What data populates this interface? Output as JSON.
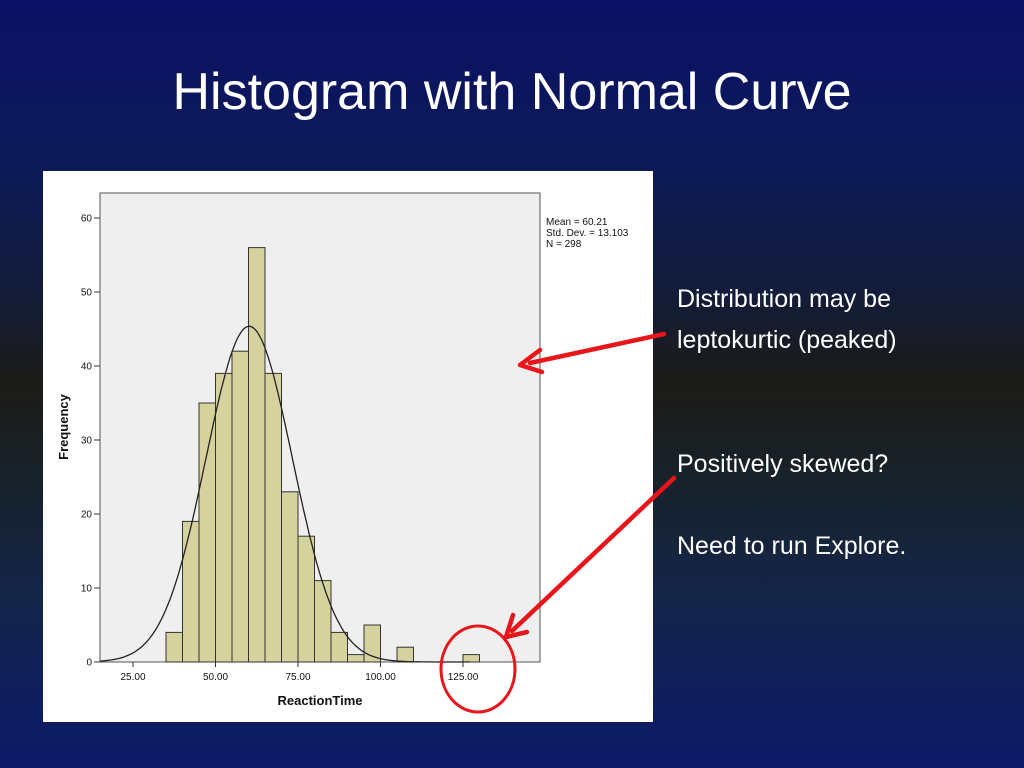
{
  "slide": {
    "title": "Histogram with Normal Curve",
    "notes": {
      "line1": "Distribution may be",
      "line2": "leptokurtic (peaked)",
      "line3": "Positively skewed?",
      "line4": "Need to run Explore."
    }
  },
  "chart_data": {
    "type": "bar",
    "subtype": "histogram-with-normal-curve",
    "xlabel": "ReactionTime",
    "ylabel": "Frequency",
    "xlim": [
      15,
      140
    ],
    "ylim": [
      0,
      60
    ],
    "x_ticks": [
      25,
      50,
      75,
      100,
      125
    ],
    "x_tick_labels": [
      "25.00",
      "50.00",
      "75.00",
      "100.00",
      "125.00"
    ],
    "y_ticks": [
      0,
      10,
      20,
      30,
      40,
      50,
      60
    ],
    "y_tick_labels": [
      "0",
      "10",
      "20",
      "30",
      "40",
      "50",
      "60"
    ],
    "bin_width": 5,
    "bins": [
      {
        "start": 35,
        "end": 40,
        "count": 4
      },
      {
        "start": 40,
        "end": 45,
        "count": 19
      },
      {
        "start": 45,
        "end": 50,
        "count": 35
      },
      {
        "start": 50,
        "end": 55,
        "count": 39
      },
      {
        "start": 55,
        "end": 60,
        "count": 42
      },
      {
        "start": 60,
        "end": 65,
        "count": 56
      },
      {
        "start": 65,
        "end": 70,
        "count": 39
      },
      {
        "start": 70,
        "end": 75,
        "count": 23
      },
      {
        "start": 75,
        "end": 80,
        "count": 17
      },
      {
        "start": 80,
        "end": 85,
        "count": 11
      },
      {
        "start": 85,
        "end": 90,
        "count": 4
      },
      {
        "start": 90,
        "end": 95,
        "count": 1
      },
      {
        "start": 95,
        "end": 100,
        "count": 5
      },
      {
        "start": 100,
        "end": 105,
        "count": 0
      },
      {
        "start": 105,
        "end": 110,
        "count": 2
      },
      {
        "start": 125,
        "end": 130,
        "count": 1
      }
    ],
    "stats": {
      "mean_label": "Mean = 60.21",
      "sd_label": "Std. Dev. = 13.103",
      "n_label": "N = 298",
      "mean": 60.21,
      "sd": 13.103,
      "n": 298
    },
    "colors": {
      "bar_fill": "#d6d29e",
      "bar_stroke": "#333333",
      "plot_bg": "#efefef",
      "curve": "#222222",
      "annotation": "#e8151b"
    },
    "grid": false
  }
}
